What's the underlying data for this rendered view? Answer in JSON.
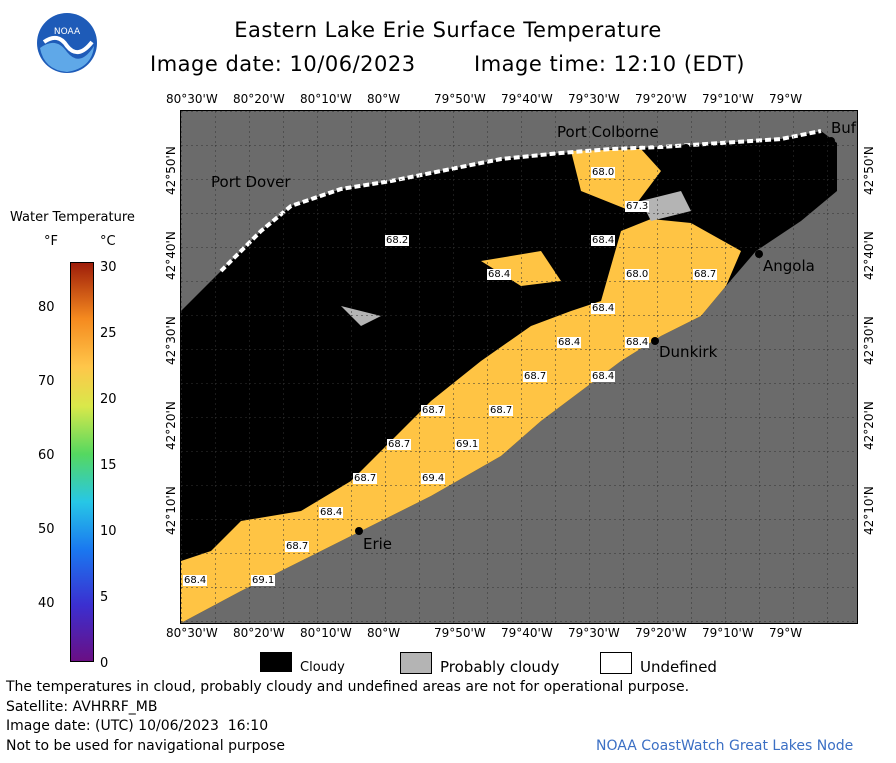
{
  "header": {
    "title": "Eastern Lake Erie Surface Temperature",
    "image_date": "Image date: 10/06/2023",
    "image_time": "Image time: 12:10 (EDT)"
  },
  "logo": {
    "text": "NOAA"
  },
  "colorbar": {
    "title": "Water Temperature",
    "unit_f": "°F",
    "unit_c": "°C",
    "f_ticks": [
      "80",
      "70",
      "60",
      "50",
      "40"
    ],
    "c_ticks": [
      "30",
      "25",
      "20",
      "15",
      "10",
      "5",
      "0"
    ]
  },
  "map": {
    "top_ticks": [
      "80°30'W",
      "80°20'W",
      "80°10'W",
      "80°W",
      "79°50'W",
      "79°40'W",
      "79°30'W",
      "79°20'W",
      "79°10'W",
      "79°W"
    ],
    "bottom_ticks": [
      "80°30'W",
      "80°20'W",
      "80°10'W",
      "80°W",
      "79°50'W",
      "79°40'W",
      "79°30'W",
      "79°20'W",
      "79°10'W",
      "79°W"
    ],
    "left_ticks": [
      "42°50'N",
      "42°40'N",
      "42°30'N",
      "42°20'N",
      "42°10'N"
    ],
    "right_ticks": [
      "42°50'N",
      "42°40'N",
      "42°30'N",
      "42°20'N",
      "42°10'N"
    ],
    "cities": {
      "port_colborne": "Port Colborne",
      "port_dover": "Port Dover",
      "angola": "Angola",
      "dunkirk": "Dunkirk",
      "erie": "Erie",
      "buffalo": "Buf"
    },
    "temps": [
      "68.0",
      "67.3",
      "68.2",
      "68.4",
      "68.4",
      "68.0",
      "68.7",
      "68.4",
      "68.4",
      "68.4",
      "68.7",
      "68.4",
      "68.7",
      "68.7",
      "68.7",
      "69.1",
      "68.7",
      "69.4",
      "68.4",
      "68.7",
      "68.4",
      "69.1"
    ],
    "colors": {
      "land": "#6b6b6b",
      "cloud": "#000000",
      "water": "#ffc444",
      "probably_cloudy": "#b4b4b4"
    }
  },
  "legend": {
    "cloudy": "Cloudy",
    "probably_cloudy": "Probably cloudy",
    "undefined": "Undefined"
  },
  "footer": {
    "note": "The temperatures in cloud, probably cloudy and undefined areas are not for operational purpose.",
    "satellite": "Satellite: AVHRRF_MB",
    "image_date_utc": "Image date: (UTC) 10/06/2023  16:10",
    "nav": "Not to be used for navigational purpose",
    "credit": "NOAA CoastWatch Great Lakes Node"
  }
}
